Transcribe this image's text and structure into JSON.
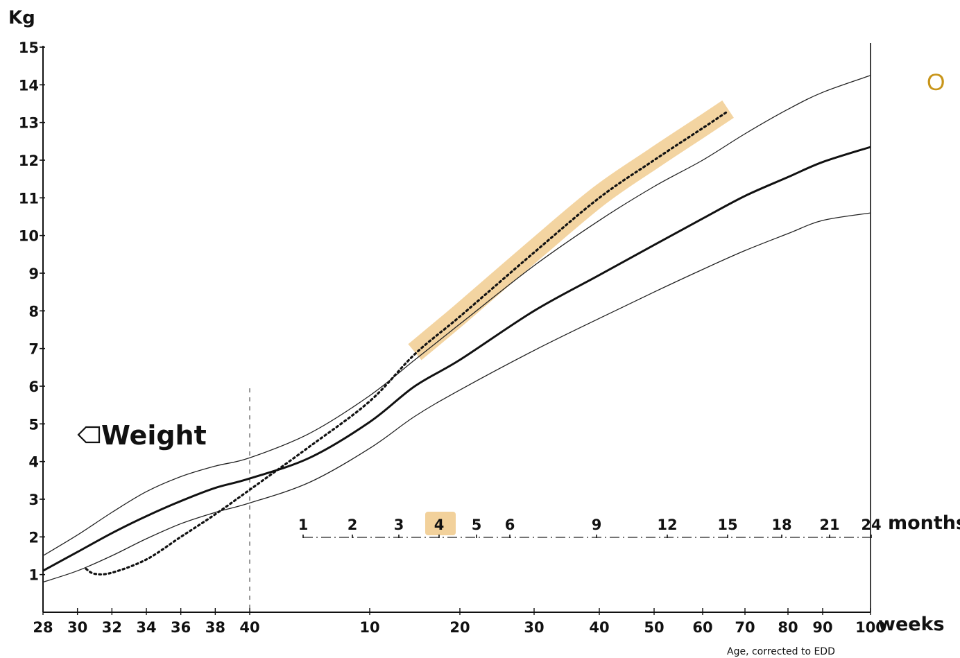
{
  "chart_data": {
    "type": "line",
    "y_unit_label": "Kg",
    "ylim": [
      0,
      15
    ],
    "y_ticks": [
      1,
      2,
      3,
      4,
      5,
      6,
      7,
      8,
      9,
      10,
      11,
      12,
      13,
      14,
      15
    ],
    "x_unit_label": "weeks",
    "x_ticks": [
      {
        "label": "28",
        "weeks": 28
      },
      {
        "label": "30",
        "weeks": 30
      },
      {
        "label": "32",
        "weeks": 32
      },
      {
        "label": "34",
        "weeks": 34
      },
      {
        "label": "36",
        "weeks": 36
      },
      {
        "label": "38",
        "weeks": 38
      },
      {
        "label": "40",
        "weeks": 40
      },
      {
        "label": "10",
        "weeks": 10
      },
      {
        "label": "20",
        "weeks": 20
      },
      {
        "label": "30",
        "weeks": 30
      },
      {
        "label": "40",
        "weeks": 40
      },
      {
        "label": "50",
        "weeks": 50
      },
      {
        "label": "60",
        "weeks": 60
      },
      {
        "label": "70",
        "weeks": 70
      },
      {
        "label": "80",
        "weeks": 80
      },
      {
        "label": "90",
        "weeks": 90
      },
      {
        "label": "100",
        "weeks": 100
      }
    ],
    "months_unit_label": "months",
    "months_ticks": [
      {
        "label": "1",
        "months": 1
      },
      {
        "label": "2",
        "months": 2
      },
      {
        "label": "3",
        "months": 3
      },
      {
        "label": "4",
        "months": 4
      },
      {
        "label": "5",
        "months": 5
      },
      {
        "label": "6",
        "months": 6
      },
      {
        "label": "9",
        "months": 9
      },
      {
        "label": "12",
        "months": 12
      },
      {
        "label": "15",
        "months": 15
      },
      {
        "label": "18",
        "months": 18
      },
      {
        "label": "21",
        "months": 21
      },
      {
        "label": "24",
        "months": 24
      }
    ],
    "highlighted_month": "4",
    "x_note": "Age, corrected to EDD",
    "annotation": "Weight",
    "corner_text": "O",
    "colors": {
      "line": "#111111",
      "highlight": "#f0c98a",
      "corner_text": "#c8951a"
    },
    "series": [
      {
        "style": "upper-thin",
        "points": [
          {
            "period": "gestation",
            "weeks": 28,
            "kg": 1.5
          },
          {
            "period": "gestation",
            "weeks": 30,
            "kg": 2.05
          },
          {
            "period": "gestation",
            "weeks": 32,
            "kg": 2.65
          },
          {
            "period": "gestation",
            "weeks": 34,
            "kg": 3.2
          },
          {
            "period": "gestation",
            "weeks": 36,
            "kg": 3.6
          },
          {
            "period": "gestation",
            "weeks": 38,
            "kg": 3.88
          },
          {
            "period": "gestation",
            "weeks": 40,
            "kg": 4.1
          },
          {
            "period": "postnatal",
            "weeks": 5,
            "kg": 4.75
          },
          {
            "period": "postnatal",
            "weeks": 10,
            "kg": 5.75
          },
          {
            "period": "postnatal",
            "weeks": 15,
            "kg": 6.7
          },
          {
            "period": "postnatal",
            "weeks": 20,
            "kg": 7.65
          },
          {
            "period": "postnatal",
            "weeks": 30,
            "kg": 9.2
          },
          {
            "period": "postnatal",
            "weeks": 40,
            "kg": 10.4
          },
          {
            "period": "postnatal",
            "weeks": 50,
            "kg": 11.3
          },
          {
            "period": "postnatal",
            "weeks": 60,
            "kg": 12.0
          },
          {
            "period": "postnatal",
            "weeks": 70,
            "kg": 12.7
          },
          {
            "period": "postnatal",
            "weeks": 80,
            "kg": 13.35
          },
          {
            "period": "postnatal",
            "weeks": 90,
            "kg": 13.8
          },
          {
            "period": "postnatal",
            "weeks": 100,
            "kg": 14.25
          }
        ]
      },
      {
        "style": "median-thick",
        "points": [
          {
            "period": "gestation",
            "weeks": 28,
            "kg": 1.1
          },
          {
            "period": "gestation",
            "weeks": 30,
            "kg": 1.6
          },
          {
            "period": "gestation",
            "weeks": 32,
            "kg": 2.1
          },
          {
            "period": "gestation",
            "weeks": 34,
            "kg": 2.55
          },
          {
            "period": "gestation",
            "weeks": 36,
            "kg": 2.95
          },
          {
            "period": "gestation",
            "weeks": 38,
            "kg": 3.3
          },
          {
            "period": "gestation",
            "weeks": 40,
            "kg": 3.55
          },
          {
            "period": "postnatal",
            "weeks": 5,
            "kg": 4.1
          },
          {
            "period": "postnatal",
            "weeks": 10,
            "kg": 5.05
          },
          {
            "period": "postnatal",
            "weeks": 15,
            "kg": 6.0
          },
          {
            "period": "postnatal",
            "weeks": 20,
            "kg": 6.7
          },
          {
            "period": "postnatal",
            "weeks": 30,
            "kg": 8.0
          },
          {
            "period": "postnatal",
            "weeks": 40,
            "kg": 8.95
          },
          {
            "period": "postnatal",
            "weeks": 50,
            "kg": 9.75
          },
          {
            "period": "postnatal",
            "weeks": 60,
            "kg": 10.45
          },
          {
            "period": "postnatal",
            "weeks": 70,
            "kg": 11.05
          },
          {
            "period": "postnatal",
            "weeks": 80,
            "kg": 11.55
          },
          {
            "period": "postnatal",
            "weeks": 90,
            "kg": 11.95
          },
          {
            "period": "postnatal",
            "weeks": 100,
            "kg": 12.35
          }
        ]
      },
      {
        "style": "lower-thin",
        "points": [
          {
            "period": "gestation",
            "weeks": 28,
            "kg": 0.8
          },
          {
            "period": "gestation",
            "weeks": 30,
            "kg": 1.1
          },
          {
            "period": "gestation",
            "weeks": 32,
            "kg": 1.5
          },
          {
            "period": "gestation",
            "weeks": 34,
            "kg": 1.95
          },
          {
            "period": "gestation",
            "weeks": 36,
            "kg": 2.35
          },
          {
            "period": "gestation",
            "weeks": 38,
            "kg": 2.65
          },
          {
            "period": "gestation",
            "weeks": 40,
            "kg": 2.9
          },
          {
            "period": "postnatal",
            "weeks": 5,
            "kg": 3.45
          },
          {
            "period": "postnatal",
            "weeks": 10,
            "kg": 4.35
          },
          {
            "period": "postnatal",
            "weeks": 15,
            "kg": 5.2
          },
          {
            "period": "postnatal",
            "weeks": 20,
            "kg": 5.9
          },
          {
            "period": "postnatal",
            "weeks": 30,
            "kg": 6.95
          },
          {
            "period": "postnatal",
            "weeks": 40,
            "kg": 7.8
          },
          {
            "period": "postnatal",
            "weeks": 50,
            "kg": 8.5
          },
          {
            "period": "postnatal",
            "weeks": 60,
            "kg": 9.1
          },
          {
            "period": "postnatal",
            "weeks": 70,
            "kg": 9.6
          },
          {
            "period": "postnatal",
            "weeks": 80,
            "kg": 10.05
          },
          {
            "period": "postnatal",
            "weeks": 90,
            "kg": 10.4
          },
          {
            "period": "postnatal",
            "weeks": 100,
            "kg": 10.6
          }
        ]
      },
      {
        "style": "dotted-measured",
        "points": [
          {
            "period": "gestation",
            "weeks": 30.5,
            "kg": 1.15
          },
          {
            "period": "gestation",
            "weeks": 31,
            "kg": 1.02
          },
          {
            "period": "gestation",
            "weeks": 32,
            "kg": 1.05
          },
          {
            "period": "gestation",
            "weeks": 34,
            "kg": 1.4
          },
          {
            "period": "gestation",
            "weeks": 36,
            "kg": 2.0
          },
          {
            "period": "gestation",
            "weeks": 38,
            "kg": 2.6
          },
          {
            "period": "gestation",
            "weeks": 40,
            "kg": 3.25
          },
          {
            "period": "postnatal",
            "weeks": 5,
            "kg": 4.4
          },
          {
            "period": "postnatal",
            "weeks": 10,
            "kg": 5.6
          },
          {
            "period": "postnatal",
            "weeks": 15,
            "kg": 6.85
          },
          {
            "period": "postnatal",
            "weeks": 20,
            "kg": 7.85
          },
          {
            "period": "postnatal",
            "weeks": 30,
            "kg": 9.55
          },
          {
            "period": "postnatal",
            "weeks": 40,
            "kg": 11.0
          },
          {
            "period": "postnatal",
            "weeks": 50,
            "kg": 12.0
          },
          {
            "period": "postnatal",
            "weeks": 60,
            "kg": 12.85
          },
          {
            "period": "postnatal",
            "weeks": 66,
            "kg": 13.3
          }
        ]
      }
    ]
  }
}
